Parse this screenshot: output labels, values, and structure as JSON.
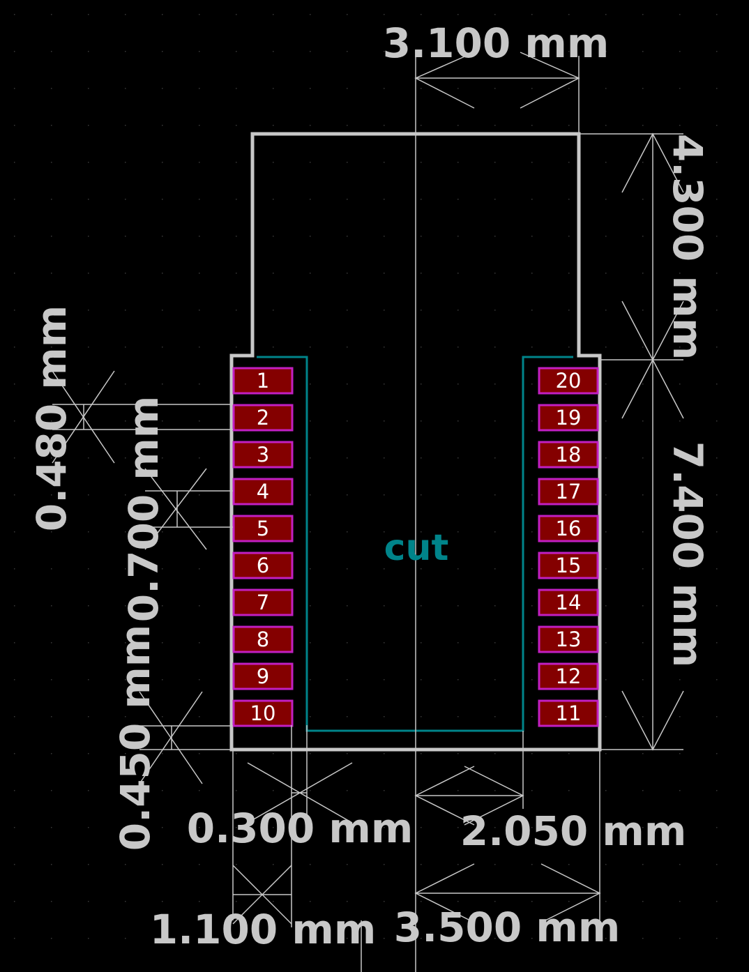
{
  "colors": {
    "background": "#000000",
    "dimension": "#c8c8c8",
    "outline": "#c8c8c8",
    "cut": "#00848a",
    "pad_fill": "#840000",
    "pad_border": "#c21fc2",
    "pad_text": "#ffffff",
    "grid_dot": "#3a3a3a"
  },
  "dimensions": {
    "top_width": "3.100 mm",
    "right_upper": "4.300 mm",
    "right_lower": "7.400 mm",
    "left_pad_width": "0.480 mm",
    "left_pitch": "0.700 mm",
    "left_gap": "0.450 mm",
    "bottom_slot": "0.300 mm",
    "bottom_half_width": "2.050 mm",
    "bottom_pad_span": "1.100 mm",
    "bottom_half_total": "3.500 mm"
  },
  "cut_label": "cut",
  "pads_left": [
    "1",
    "2",
    "3",
    "4",
    "5",
    "6",
    "7",
    "8",
    "9",
    "10"
  ],
  "pads_right": [
    "20",
    "19",
    "18",
    "17",
    "16",
    "15",
    "14",
    "13",
    "12",
    "11"
  ]
}
